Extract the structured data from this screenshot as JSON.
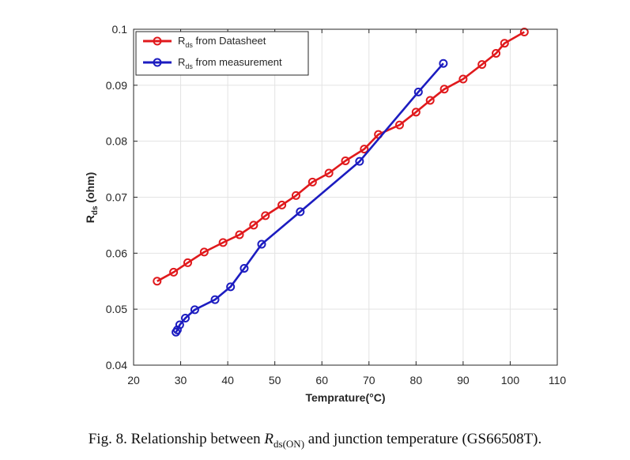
{
  "chart_data": {
    "type": "line",
    "xlabel": "Temprature(°C)",
    "ylabel_main": "R",
    "ylabel_sub": "ds",
    "ylabel_tail": " (ohm)",
    "xlim": [
      20,
      110
    ],
    "ylim": [
      0.04,
      0.1
    ],
    "xticks": [
      20,
      30,
      40,
      50,
      60,
      70,
      80,
      90,
      100,
      110
    ],
    "yticks": [
      0.04,
      0.05,
      0.06,
      0.07,
      0.08,
      0.09,
      0.1
    ],
    "ytick_labels": [
      "0.04",
      "0.05",
      "0.06",
      "0.07",
      "0.08",
      "0.09",
      "0.1"
    ],
    "grid": true,
    "legend_position": "top-left",
    "series": [
      {
        "name_main": "R",
        "name_sub": "ds",
        "name_tail": " from Datasheet",
        "color": "#e0191c",
        "marker": "circle",
        "x": [
          25,
          28.5,
          31.5,
          35,
          39,
          42.5,
          45.5,
          48,
          51.5,
          54.5,
          58,
          61.5,
          65,
          69,
          72,
          76.5,
          80,
          83,
          86,
          90,
          94,
          97,
          98.8,
          103
        ],
        "y": [
          0.055,
          0.0566,
          0.0583,
          0.0602,
          0.0619,
          0.0633,
          0.065,
          0.0667,
          0.0686,
          0.0703,
          0.0727,
          0.0743,
          0.0765,
          0.0786,
          0.0812,
          0.0829,
          0.0852,
          0.0873,
          0.0893,
          0.0911,
          0.0937,
          0.0957,
          0.0975,
          0.0995
        ]
      },
      {
        "name_main": "R",
        "name_sub": "ds",
        "name_tail": " from measurement",
        "color": "#1c1cc0",
        "marker": "circle",
        "x": [
          29,
          29.3,
          29.8,
          31,
          33,
          37.3,
          40.6,
          43.5,
          47.2,
          55.4,
          68,
          80.5,
          85.8
        ],
        "y": [
          0.0459,
          0.0463,
          0.0472,
          0.0484,
          0.0499,
          0.0517,
          0.054,
          0.0573,
          0.0616,
          0.0674,
          0.0764,
          0.0888,
          0.0939
        ]
      }
    ]
  },
  "caption": {
    "prefix": "Fig. 8.   Relationship between ",
    "sym": "R",
    "sub": "ds(ON)",
    "suffix": " and junction temperature (GS66508T)."
  }
}
